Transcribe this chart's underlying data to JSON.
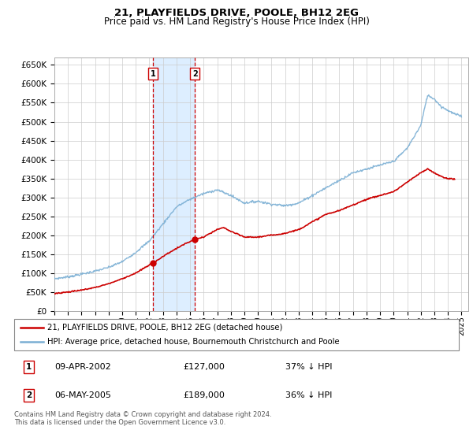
{
  "title": "21, PLAYFIELDS DRIVE, POOLE, BH12 2EG",
  "subtitle": "Price paid vs. HM Land Registry's House Price Index (HPI)",
  "ylim": [
    0,
    670000
  ],
  "yticks": [
    0,
    50000,
    100000,
    150000,
    200000,
    250000,
    300000,
    350000,
    400000,
    450000,
    500000,
    550000,
    600000,
    650000
  ],
  "xlim_start": 1995.0,
  "xlim_end": 2025.5,
  "sale1_date": 2002.27,
  "sale1_price": 127000,
  "sale2_date": 2005.35,
  "sale2_price": 189000,
  "red_line_color": "#cc0000",
  "blue_line_color": "#7bafd4",
  "shade_color": "#ddeeff",
  "legend_label1": "21, PLAYFIELDS DRIVE, POOLE, BH12 2EG (detached house)",
  "legend_label2": "HPI: Average price, detached house, Bournemouth Christchurch and Poole",
  "table_row1": [
    "1",
    "09-APR-2002",
    "£127,000",
    "37% ↓ HPI"
  ],
  "table_row2": [
    "2",
    "06-MAY-2005",
    "£189,000",
    "36% ↓ HPI"
  ],
  "footer": "Contains HM Land Registry data © Crown copyright and database right 2024.\nThis data is licensed under the Open Government Licence v3.0.",
  "title_fontsize": 9.5,
  "subtitle_fontsize": 8.5,
  "hpi_knots": [
    [
      1995.0,
      85000
    ],
    [
      1996.0,
      90000
    ],
    [
      1997.0,
      97000
    ],
    [
      1998.0,
      105000
    ],
    [
      1999.0,
      115000
    ],
    [
      2000.0,
      130000
    ],
    [
      2001.0,
      155000
    ],
    [
      2002.0,
      185000
    ],
    [
      2003.0,
      230000
    ],
    [
      2004.0,
      275000
    ],
    [
      2005.0,
      295000
    ],
    [
      2006.0,
      310000
    ],
    [
      2007.0,
      320000
    ],
    [
      2008.0,
      305000
    ],
    [
      2009.0,
      285000
    ],
    [
      2010.0,
      290000
    ],
    [
      2011.0,
      282000
    ],
    [
      2012.0,
      278000
    ],
    [
      2013.0,
      285000
    ],
    [
      2014.0,
      305000
    ],
    [
      2015.0,
      325000
    ],
    [
      2016.0,
      345000
    ],
    [
      2017.0,
      365000
    ],
    [
      2018.0,
      375000
    ],
    [
      2019.0,
      385000
    ],
    [
      2020.0,
      395000
    ],
    [
      2021.0,
      430000
    ],
    [
      2022.0,
      490000
    ],
    [
      2022.5,
      570000
    ],
    [
      2023.0,
      560000
    ],
    [
      2023.5,
      540000
    ],
    [
      2024.0,
      530000
    ],
    [
      2024.5,
      520000
    ],
    [
      2025.0,
      515000
    ]
  ],
  "red_knots": [
    [
      1995.0,
      46000
    ],
    [
      1996.0,
      50000
    ],
    [
      1997.0,
      55000
    ],
    [
      1998.0,
      62000
    ],
    [
      1999.0,
      72000
    ],
    [
      2000.0,
      85000
    ],
    [
      2001.0,
      100000
    ],
    [
      2002.27,
      127000
    ],
    [
      2003.5,
      155000
    ],
    [
      2004.5,
      175000
    ],
    [
      2005.35,
      189000
    ],
    [
      2006.0,
      195000
    ],
    [
      2006.5,
      205000
    ],
    [
      2007.0,
      215000
    ],
    [
      2007.5,
      220000
    ],
    [
      2008.0,
      210000
    ],
    [
      2009.0,
      195000
    ],
    [
      2010.0,
      195000
    ],
    [
      2011.0,
      200000
    ],
    [
      2012.0,
      205000
    ],
    [
      2013.0,
      215000
    ],
    [
      2014.0,
      235000
    ],
    [
      2015.0,
      255000
    ],
    [
      2016.0,
      265000
    ],
    [
      2017.0,
      280000
    ],
    [
      2018.0,
      295000
    ],
    [
      2019.0,
      305000
    ],
    [
      2020.0,
      315000
    ],
    [
      2021.0,
      340000
    ],
    [
      2022.0,
      365000
    ],
    [
      2022.5,
      375000
    ],
    [
      2023.0,
      365000
    ],
    [
      2023.5,
      355000
    ],
    [
      2024.0,
      350000
    ],
    [
      2024.5,
      348000
    ]
  ]
}
